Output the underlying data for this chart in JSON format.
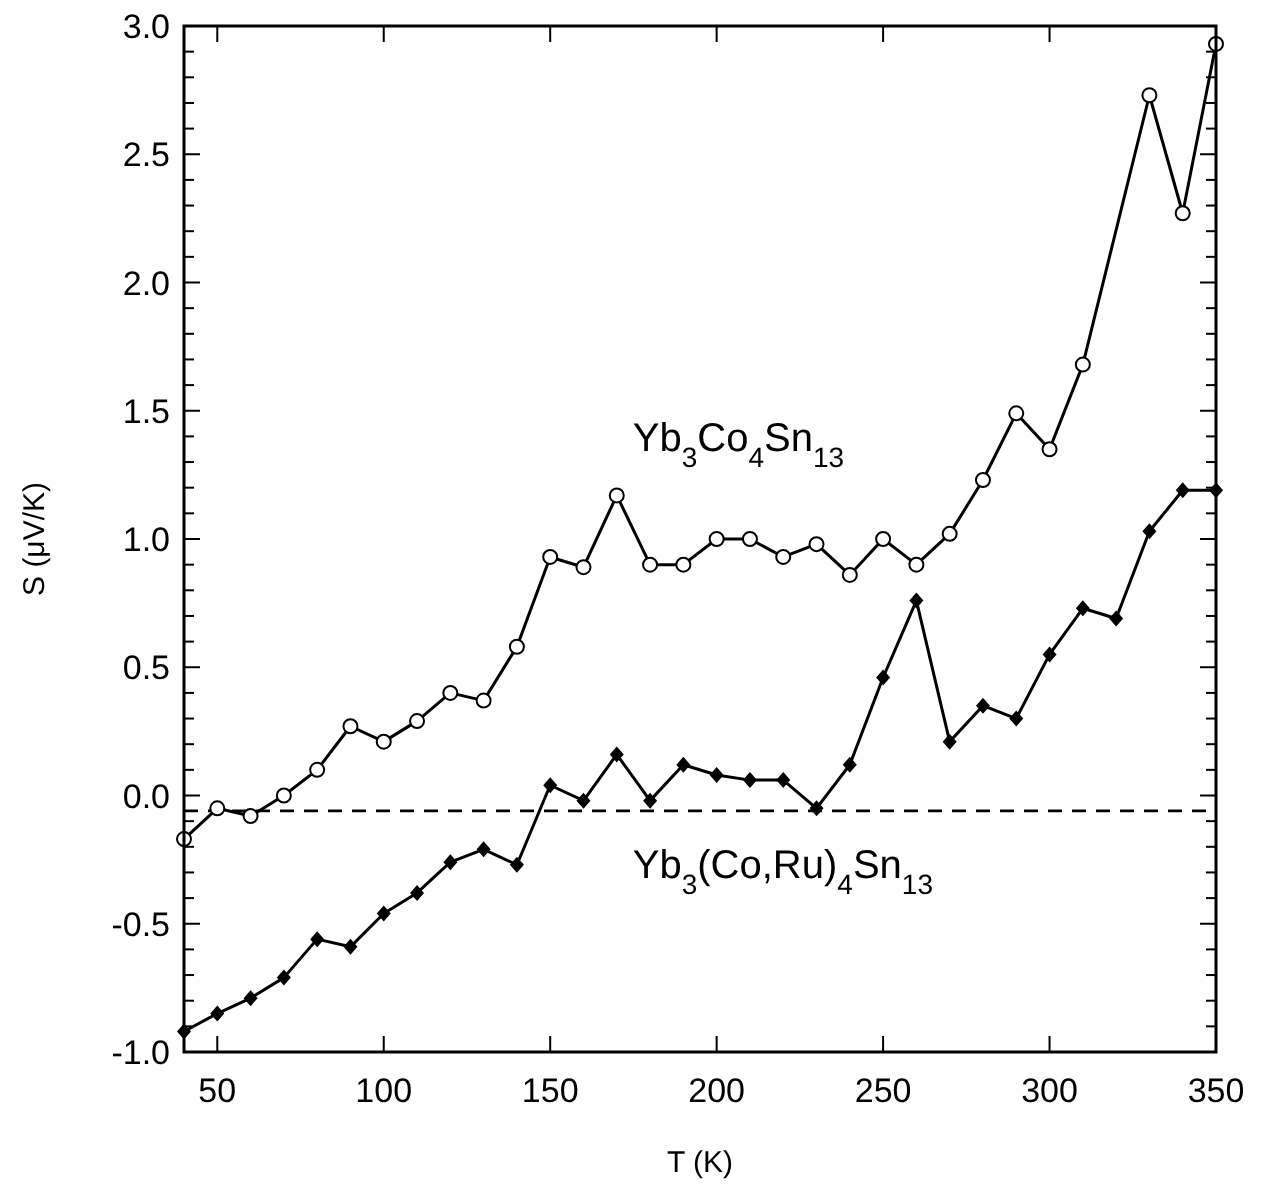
{
  "chart_data": {
    "type": "line",
    "xlabel": "T (K)",
    "ylabel": "S (μV/K)",
    "xlim": [
      40,
      350
    ],
    "ylim": [
      -1,
      3
    ],
    "xticks": [
      50,
      100,
      150,
      200,
      250,
      300,
      350
    ],
    "yticks": [
      {
        "value": -1,
        "label": "-1.0"
      },
      {
        "value": -0.5,
        "label": "-0.5"
      },
      {
        "value": 0,
        "label": "0.0"
      },
      {
        "value": 0.5,
        "label": "0.5"
      },
      {
        "value": 1,
        "label": "1.0"
      },
      {
        "value": 1.5,
        "label": "1.5"
      },
      {
        "value": 2,
        "label": "2.0"
      },
      {
        "value": 2.5,
        "label": "2.5"
      },
      {
        "value": 3,
        "label": "3.0"
      }
    ],
    "grid": false,
    "line_style": "solid",
    "series": [
      {
        "name": "Yb$_{3}$Co$_{4}$Sn$_{13}$",
        "color": "#000000",
        "marker": "circle",
        "x": [
          40,
          50,
          60,
          70,
          80,
          90,
          100,
          110,
          120,
          130,
          140,
          150,
          160,
          170,
          180,
          190,
          200,
          210,
          220,
          230,
          240,
          250,
          260,
          270,
          280,
          290,
          300,
          310,
          330,
          340,
          350
        ],
        "values": [
          -0.17,
          -0.05,
          -0.08,
          0.0,
          0.1,
          0.27,
          0.21,
          0.29,
          0.4,
          0.37,
          0.58,
          0.93,
          0.89,
          1.17,
          0.9,
          0.9,
          1.0,
          1.0,
          0.93,
          0.98,
          0.86,
          1.0,
          0.9,
          1.02,
          1.23,
          1.49,
          1.35,
          1.68,
          2.73,
          2.27,
          2.93
        ]
      },
      {
        "name": "Yb$_{3}$(Co,Ru)$_{4}$Sn$_{13}$",
        "color": "#000000",
        "marker": "diamond",
        "x": [
          40,
          50,
          60,
          70,
          80,
          90,
          100,
          110,
          120,
          130,
          140,
          150,
          160,
          170,
          180,
          190,
          200,
          210,
          220,
          230,
          240,
          250,
          260,
          270,
          280,
          290,
          300,
          310,
          320,
          330,
          340,
          350
        ],
        "values": [
          -0.92,
          -0.85,
          -0.79,
          -0.71,
          -0.56,
          -0.59,
          -0.46,
          -0.38,
          -0.26,
          -0.21,
          -0.27,
          0.04,
          -0.02,
          0.16,
          -0.02,
          0.12,
          0.08,
          0.06,
          0.06,
          -0.05,
          0.12,
          0.46,
          0.76,
          0.21,
          0.35,
          0.3,
          0.55,
          0.73,
          0.69,
          1.03,
          1.19,
          1.19
        ]
      }
    ],
    "ref_lines": [
      {
        "axis": "y",
        "value": -0.06,
        "color": "#000000",
        "line_style": "dashed"
      }
    ]
  }
}
